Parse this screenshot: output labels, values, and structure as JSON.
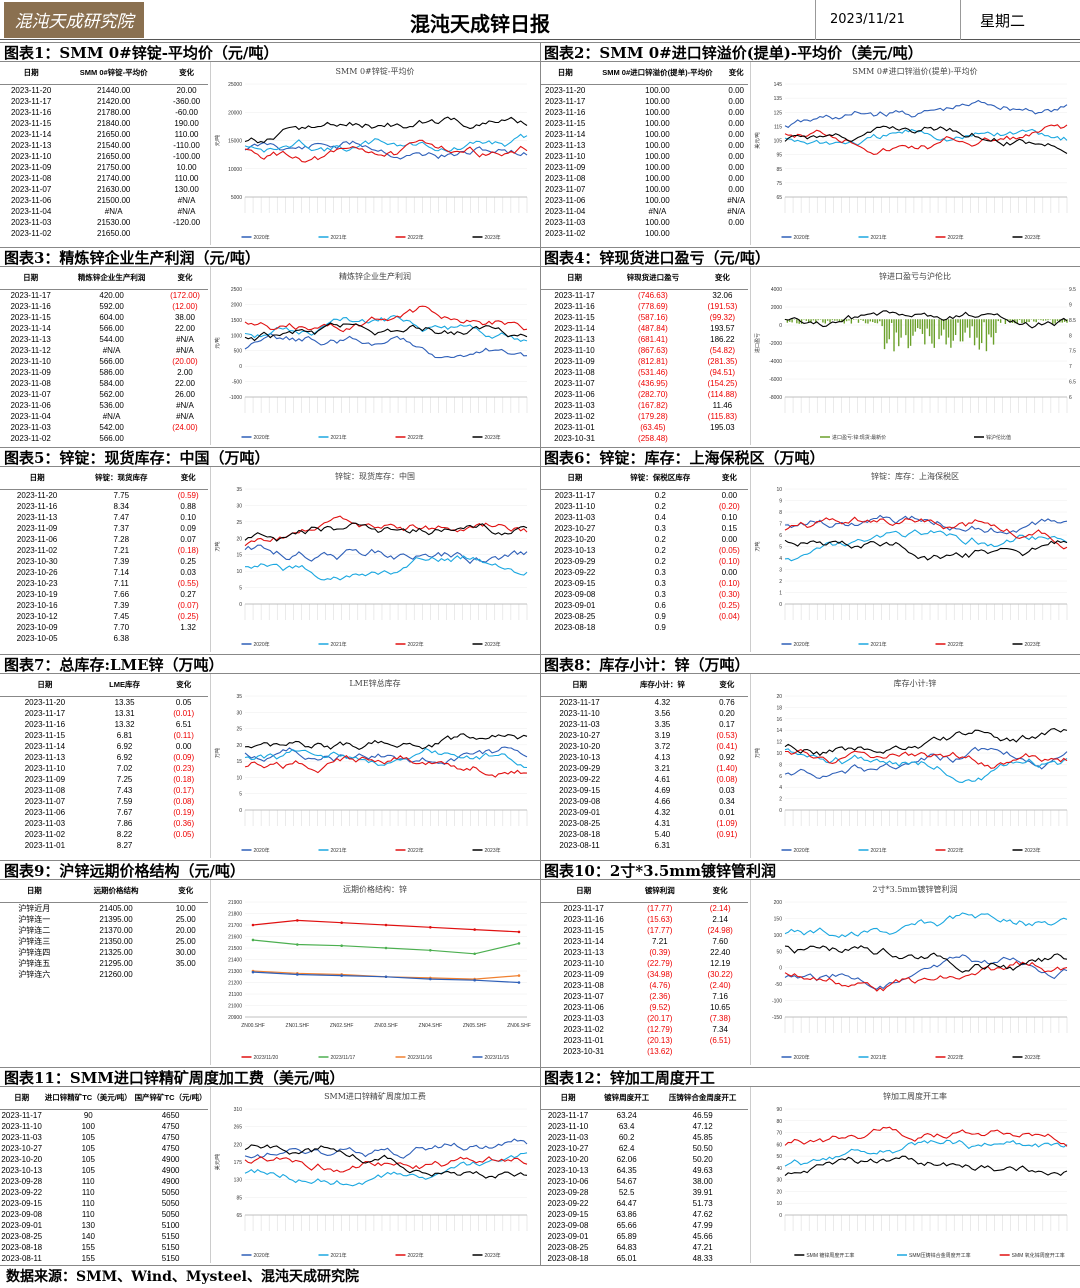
{
  "header": {
    "logo": "混沌天成研究院",
    "title": "混沌天成锌日报",
    "date": "2023/11/21",
    "weekday": "星期二"
  },
  "footer": "数据来源：SMM、Wind、Mysteel、混沌天成研究院",
  "sections": [
    {
      "title": "图表1：SMM 0#锌锭-平均价（元/吨）",
      "headers": [
        "日期",
        "SMM 0#锌锭-平均价",
        "变化"
      ],
      "rows": [
        [
          "2023-11-20",
          "21440.00",
          "20.00"
        ],
        [
          "2023-11-17",
          "21420.00",
          "-360.00"
        ],
        [
          "2023-11-16",
          "21780.00",
          "-60.00"
        ],
        [
          "2023-11-15",
          "21840.00",
          "190.00"
        ],
        [
          "2023-11-14",
          "21650.00",
          "110.00"
        ],
        [
          "2023-11-13",
          "21540.00",
          "-110.00"
        ],
        [
          "2023-11-10",
          "21650.00",
          "-100.00"
        ],
        [
          "2023-11-09",
          "21750.00",
          "10.00"
        ],
        [
          "2023-11-08",
          "21740.00",
          "110.00"
        ],
        [
          "2023-11-07",
          "21630.00",
          "130.00"
        ],
        [
          "2023-11-06",
          "21500.00",
          "#N/A"
        ],
        [
          "2023-11-04",
          "#N/A",
          "#N/A"
        ],
        [
          "2023-11-03",
          "21530.00",
          "-120.00"
        ],
        [
          "2023-11-02",
          "21650.00",
          ""
        ]
      ],
      "chart": {
        "title": "SMM 0#锌锭-平均价",
        "ylabel": "元/吨",
        "yticks": [
          "25000",
          "20000",
          "15000",
          "10000",
          "5000"
        ],
        "legend": [
          "2020年",
          "2021年",
          "2022年",
          "2023年"
        ]
      }
    },
    {
      "title": "图表2：SMM 0#进口锌溢价(提单)-平均价（美元/吨）",
      "headers": [
        "日期",
        "SMM 0#进口锌溢价(提单)-平均价",
        "变化"
      ],
      "rows": [
        [
          "2023-11-20",
          "100.00",
          "0.00"
        ],
        [
          "2023-11-17",
          "100.00",
          "0.00"
        ],
        [
          "2023-11-16",
          "100.00",
          "0.00"
        ],
        [
          "2023-11-15",
          "100.00",
          "0.00"
        ],
        [
          "2023-11-14",
          "100.00",
          "0.00"
        ],
        [
          "2023-11-13",
          "100.00",
          "0.00"
        ],
        [
          "2023-11-10",
          "100.00",
          "0.00"
        ],
        [
          "2023-11-09",
          "100.00",
          "0.00"
        ],
        [
          "2023-11-08",
          "100.00",
          "0.00"
        ],
        [
          "2023-11-07",
          "100.00",
          "0.00"
        ],
        [
          "2023-11-06",
          "100.00",
          "#N/A"
        ],
        [
          "2023-11-04",
          "#N/A",
          "#N/A"
        ],
        [
          "2023-11-03",
          "100.00",
          "0.00"
        ],
        [
          "2023-11-02",
          "100.00",
          ""
        ]
      ],
      "chart": {
        "title": "SMM 0#进口锌溢价(提单)-平均价",
        "ylabel": "美元/吨",
        "yticks": [
          "145",
          "135",
          "125",
          "115",
          "105",
          "95",
          "85",
          "75",
          "65"
        ],
        "legend": [
          "2020年",
          "2021年",
          "2022年",
          "2023年"
        ]
      }
    },
    {
      "title": "图表3：精炼锌企业生产利润（元/吨）",
      "headers": [
        "日期",
        "精炼锌企业生产利润",
        "变化"
      ],
      "rows": [
        [
          "2023-11-17",
          "420.00",
          "(172.00)"
        ],
        [
          "2023-11-16",
          "592.00",
          "(12.00)"
        ],
        [
          "2023-11-15",
          "604.00",
          "38.00"
        ],
        [
          "2023-11-14",
          "566.00",
          "22.00"
        ],
        [
          "2023-11-13",
          "544.00",
          "#N/A"
        ],
        [
          "2023-11-12",
          "#N/A",
          "#N/A"
        ],
        [
          "2023-11-10",
          "566.00",
          "(20.00)"
        ],
        [
          "2023-11-09",
          "586.00",
          "2.00"
        ],
        [
          "2023-11-08",
          "584.00",
          "22.00"
        ],
        [
          "2023-11-07",
          "562.00",
          "26.00"
        ],
        [
          "2023-11-06",
          "536.00",
          "#N/A"
        ],
        [
          "2023-11-04",
          "#N/A",
          "#N/A"
        ],
        [
          "2023-11-03",
          "542.00",
          "(24.00)"
        ],
        [
          "2023-11-02",
          "566.00",
          ""
        ]
      ],
      "chart": {
        "title": "精炼锌企业生产利润",
        "ylabel": "元/吨",
        "yticks": [
          "2500",
          "2000",
          "1500",
          "1000",
          "500",
          "0",
          "-500",
          "-1000"
        ],
        "legend": [
          "2020年",
          "2021年",
          "2022年",
          "2023年"
        ]
      }
    },
    {
      "title": "图表4：锌现货进口盈亏（元/吨）",
      "headers": [
        "日期",
        "锌现货进口盈亏",
        "变化"
      ],
      "rows": [
        [
          "2023-11-17",
          "(746.63)",
          "32.06"
        ],
        [
          "2023-11-16",
          "(778.69)",
          "(191.53)"
        ],
        [
          "2023-11-15",
          "(587.16)",
          "(99.32)"
        ],
        [
          "2023-11-14",
          "(487.84)",
          "193.57"
        ],
        [
          "2023-11-13",
          "(681.41)",
          "186.22"
        ],
        [
          "2023-11-10",
          "(867.63)",
          "(54.82)"
        ],
        [
          "2023-11-09",
          "(812.81)",
          "(281.35)"
        ],
        [
          "2023-11-08",
          "(531.46)",
          "(94.51)"
        ],
        [
          "2023-11-07",
          "(436.95)",
          "(154.25)"
        ],
        [
          "2023-11-06",
          "(282.70)",
          "(114.88)"
        ],
        [
          "2023-11-03",
          "(167.82)",
          "11.46"
        ],
        [
          "2023-11-02",
          "(179.28)",
          "(115.83)"
        ],
        [
          "2023-11-01",
          "(63.45)",
          "195.03"
        ],
        [
          "2023-10-31",
          "(258.48)",
          ""
        ]
      ],
      "chart": {
        "title": "锌进口盈亏与沪伦比",
        "ylabel": "进口盈亏",
        "y2label": "沪伦比",
        "yticks": [
          "4000",
          "2000",
          "0",
          "-2000",
          "-4000",
          "-6000",
          "-8000"
        ],
        "y2ticks": [
          "9.5",
          "9",
          "8.5",
          "8",
          "7.5",
          "7",
          "6.5",
          "6"
        ],
        "legend": [
          "进口盈亏:锌:现货:最新价",
          "锌沪伦比值"
        ]
      }
    },
    {
      "title": "图表5：锌锭：现货库存：中国（万吨）",
      "headers": [
        "日期",
        "锌锭：现货库存",
        "变化"
      ],
      "rows": [
        [
          "2023-11-20",
          "7.75",
          "(0.59)"
        ],
        [
          "2023-11-16",
          "8.34",
          "0.88"
        ],
        [
          "2023-11-13",
          "7.47",
          "0.10"
        ],
        [
          "2023-11-09",
          "7.37",
          "0.09"
        ],
        [
          "2023-11-06",
          "7.28",
          "0.07"
        ],
        [
          "2023-11-02",
          "7.21",
          "(0.18)"
        ],
        [
          "2023-10-30",
          "7.39",
          "0.25"
        ],
        [
          "2023-10-26",
          "7.14",
          "0.03"
        ],
        [
          "2023-10-23",
          "7.11",
          "(0.55)"
        ],
        [
          "2023-10-19",
          "7.66",
          "0.27"
        ],
        [
          "2023-10-16",
          "7.39",
          "(0.07)"
        ],
        [
          "2023-10-12",
          "7.45",
          "(0.25)"
        ],
        [
          "2023-10-09",
          "7.70",
          "1.32"
        ],
        [
          "2023-10-05",
          "6.38",
          ""
        ]
      ],
      "chart": {
        "title": "锌锭：现货库存：中国",
        "ylabel": "万吨",
        "yticks": [
          "35",
          "30",
          "25",
          "20",
          "15",
          "10",
          "5",
          "0"
        ],
        "legend": [
          "2020年",
          "2021年",
          "2022年",
          "2023年"
        ]
      }
    },
    {
      "title": "图表6：锌锭：库存：上海保税区（万吨）",
      "headers": [
        "日期",
        "锌锭：保税区库存",
        "变化"
      ],
      "rows": [
        [
          "2023-11-17",
          "0.2",
          "0.00"
        ],
        [
          "2023-11-10",
          "0.2",
          "(0.20)"
        ],
        [
          "2023-11-03",
          "0.4",
          "0.10"
        ],
        [
          "2023-10-27",
          "0.3",
          "0.15"
        ],
        [
          "2023-10-20",
          "0.2",
          "0.00"
        ],
        [
          "2023-10-13",
          "0.2",
          "(0.05)"
        ],
        [
          "2023-09-29",
          "0.2",
          "(0.10)"
        ],
        [
          "2023-09-22",
          "0.3",
          "0.00"
        ],
        [
          "2023-09-15",
          "0.3",
          "(0.10)"
        ],
        [
          "2023-09-08",
          "0.3",
          "(0.30)"
        ],
        [
          "2023-09-01",
          "0.6",
          "(0.25)"
        ],
        [
          "2023-08-25",
          "0.9",
          "(0.04)"
        ],
        [
          "2023-08-18",
          "0.9",
          ""
        ]
      ],
      "chart": {
        "title": "锌锭：库存：上海保税区",
        "ylabel": "万吨",
        "yticks": [
          "10",
          "9",
          "8",
          "7",
          "6",
          "5",
          "4",
          "3",
          "2",
          "1",
          "0"
        ],
        "legend": [
          "2020年",
          "2021年",
          "2022年",
          "2023年"
        ]
      }
    },
    {
      "title": "图表7：总库存:LME锌（万吨）",
      "headers": [
        "日期",
        "LME库存",
        "变化"
      ],
      "rows": [
        [
          "2023-11-20",
          "13.35",
          "0.05"
        ],
        [
          "2023-11-17",
          "13.31",
          "(0.01)"
        ],
        [
          "2023-11-16",
          "13.32",
          "6.51"
        ],
        [
          "2023-11-15",
          "6.81",
          "(0.11)"
        ],
        [
          "2023-11-14",
          "6.92",
          "0.00"
        ],
        [
          "2023-11-13",
          "6.92",
          "(0.09)"
        ],
        [
          "2023-11-10",
          "7.02",
          "(0.23)"
        ],
        [
          "2023-11-09",
          "7.25",
          "(0.18)"
        ],
        [
          "2023-11-08",
          "7.43",
          "(0.17)"
        ],
        [
          "2023-11-07",
          "7.59",
          "(0.08)"
        ],
        [
          "2023-11-06",
          "7.67",
          "(0.19)"
        ],
        [
          "2023-11-03",
          "7.86",
          "(0.36)"
        ],
        [
          "2023-11-02",
          "8.22",
          "(0.05)"
        ],
        [
          "2023-11-01",
          "8.27",
          ""
        ]
      ],
      "chart": {
        "title": "LME锌总库存",
        "ylabel": "万吨",
        "yticks": [
          "35",
          "30",
          "25",
          "20",
          "15",
          "10",
          "5",
          "0"
        ],
        "legend": [
          "2020年",
          "2021年",
          "2022年",
          "2023年"
        ]
      }
    },
    {
      "title": "图表8：库存小计：锌（万吨）",
      "headers": [
        "日期",
        "库存小计：锌",
        "变化"
      ],
      "rows": [
        [
          "2023-11-17",
          "4.32",
          "0.76"
        ],
        [
          "2023-11-10",
          "3.56",
          "0.20"
        ],
        [
          "2023-11-03",
          "3.35",
          "0.17"
        ],
        [
          "2023-10-27",
          "3.19",
          "(0.53)"
        ],
        [
          "2023-10-20",
          "3.72",
          "(0.41)"
        ],
        [
          "2023-10-13",
          "4.13",
          "0.92"
        ],
        [
          "2023-09-29",
          "3.21",
          "(1.40)"
        ],
        [
          "2023-09-22",
          "4.61",
          "(0.08)"
        ],
        [
          "2023-09-15",
          "4.69",
          "0.03"
        ],
        [
          "2023-09-08",
          "4.66",
          "0.34"
        ],
        [
          "2023-09-01",
          "4.32",
          "0.01"
        ],
        [
          "2023-08-25",
          "4.31",
          "(1.09)"
        ],
        [
          "2023-08-18",
          "5.40",
          "(0.91)"
        ],
        [
          "2023-08-11",
          "6.31",
          ""
        ]
      ],
      "chart": {
        "title": "库存小计:锌",
        "ylabel": "万吨",
        "yticks": [
          "20",
          "18",
          "16",
          "14",
          "12",
          "10",
          "8",
          "6",
          "4",
          "2",
          "0"
        ],
        "legend": [
          "2020年",
          "2021年",
          "2022年",
          "2023年"
        ]
      }
    },
    {
      "title": "图表9：沪锌远期价格结构（元/吨）",
      "headers": [
        "日期",
        "远期价格结构",
        "变化"
      ],
      "rows": [
        [
          "沪锌近月",
          "21405.00",
          "10.00"
        ],
        [
          "沪锌连一",
          "21395.00",
          "25.00"
        ],
        [
          "沪锌连二",
          "21370.00",
          "20.00"
        ],
        [
          "沪锌连三",
          "21350.00",
          "25.00"
        ],
        [
          "沪锌连四",
          "21325.00",
          "30.00"
        ],
        [
          "沪锌连五",
          "21295.00",
          "35.00"
        ],
        [
          "沪锌连六",
          "21260.00",
          ""
        ]
      ],
      "chart": {
        "title": "远期价格结构：锌",
        "yticks": [
          "21900",
          "21800",
          "21700",
          "21600",
          "21500",
          "21400",
          "21300",
          "21200",
          "21100",
          "21000",
          "20900"
        ],
        "xticks": [
          "ZN00.SHF",
          "ZN01.SHF",
          "ZN02.SHF",
          "ZN03.SHF",
          "ZN04.SHF",
          "ZN05.SHF",
          "ZN06.SHF"
        ],
        "legend": [
          "2023/11/20",
          "2023/11/17",
          "2023/11/16",
          "2023/11/15"
        ]
      }
    },
    {
      "title": "图表10：2寸*3.5mm镀锌管利润",
      "headers": [
        "日期",
        "镀锌利润",
        "变化"
      ],
      "rows": [
        [
          "2023-11-17",
          "(17.77)",
          "(2.14)"
        ],
        [
          "2023-11-16",
          "(15.63)",
          "2.14"
        ],
        [
          "2023-11-15",
          "(17.77)",
          "(24.98)"
        ],
        [
          "2023-11-14",
          "7.21",
          "7.60"
        ],
        [
          "2023-11-13",
          "(0.39)",
          "22.40"
        ],
        [
          "2023-11-10",
          "(22.79)",
          "12.19"
        ],
        [
          "2023-11-09",
          "(34.98)",
          "(30.22)"
        ],
        [
          "2023-11-08",
          "(4.76)",
          "(2.40)"
        ],
        [
          "2023-11-07",
          "(2.36)",
          "7.16"
        ],
        [
          "2023-11-06",
          "(9.52)",
          "10.65"
        ],
        [
          "2023-11-03",
          "(20.17)",
          "(7.38)"
        ],
        [
          "2023-11-02",
          "(12.79)",
          "7.34"
        ],
        [
          "2023-11-01",
          "(20.13)",
          "(6.51)"
        ],
        [
          "2023-10-31",
          "(13.62)",
          ""
        ]
      ],
      "chart": {
        "title": "2寸*3.5mm镀锌管利润",
        "yticks": [
          "200",
          "150",
          "100",
          "50",
          "0",
          "-50",
          "-100",
          "-150"
        ],
        "legend": [
          "2020年",
          "2021年",
          "2022年",
          "2023年"
        ]
      }
    },
    {
      "title": "图表11：SMM进口锌精矿周度加工费（美元/吨）",
      "headers": [
        "日期",
        "进口锌精矿TC（美元/吨）",
        "国产锌矿TC（元/吨）"
      ],
      "rows": [
        [
          "2023-11-17",
          "90",
          "4650"
        ],
        [
          "2023-11-10",
          "100",
          "4750"
        ],
        [
          "2023-11-03",
          "105",
          "4750"
        ],
        [
          "2023-10-27",
          "105",
          "4750"
        ],
        [
          "2023-10-20",
          "105",
          "4900"
        ],
        [
          "2023-10-13",
          "105",
          "4900"
        ],
        [
          "2023-09-28",
          "110",
          "4900"
        ],
        [
          "2023-09-22",
          "110",
          "5050"
        ],
        [
          "2023-09-15",
          "110",
          "5050"
        ],
        [
          "2023-09-08",
          "110",
          "5050"
        ],
        [
          "2023-09-01",
          "130",
          "5100"
        ],
        [
          "2023-08-25",
          "140",
          "5150"
        ],
        [
          "2023-08-18",
          "155",
          "5150"
        ],
        [
          "2023-08-11",
          "155",
          "5150"
        ]
      ],
      "chart": {
        "title": "SMM进口锌精矿周度加工费",
        "ylabel": "美元/吨",
        "yticks": [
          "310",
          "265",
          "220",
          "175",
          "130",
          "85",
          "65"
        ],
        "legend": [
          "2020年",
          "2021年",
          "2022年",
          "2023年"
        ]
      }
    },
    {
      "title": "图表12：锌加工周度开工",
      "headers": [
        "日期",
        "镀锌周度开工",
        "压铸锌合金周度开工"
      ],
      "rows": [
        [
          "2023-11-17",
          "63.24",
          "46.59"
        ],
        [
          "2023-11-10",
          "63.4",
          "47.12"
        ],
        [
          "2023-11-03",
          "60.2",
          "45.85"
        ],
        [
          "2023-10-27",
          "62.4",
          "50.50"
        ],
        [
          "2023-10-20",
          "62.06",
          "50.20"
        ],
        [
          "2023-10-13",
          "64.35",
          "49.63"
        ],
        [
          "2023-10-06",
          "54.67",
          "38.00"
        ],
        [
          "2023-09-28",
          "52.5",
          "39.91"
        ],
        [
          "2023-09-22",
          "64.47",
          "51.73"
        ],
        [
          "2023-09-15",
          "63.86",
          "47.62"
        ],
        [
          "2023-09-08",
          "65.66",
          "47.99"
        ],
        [
          "2023-09-01",
          "65.89",
          "45.66"
        ],
        [
          "2023-08-25",
          "64.83",
          "47.21"
        ],
        [
          "2023-08-18",
          "65.01",
          "48.33"
        ]
      ],
      "chart": {
        "title": "锌加工周度开工率",
        "yticks": [
          "90",
          "80",
          "70",
          "60",
          "50",
          "40",
          "30",
          "20",
          "10",
          "0"
        ],
        "legend": [
          "SMM 镀锌周度开工率",
          "SMM压铸锌合金周度开工率",
          "SMM 氧化锌周度开工率"
        ]
      }
    }
  ]
}
